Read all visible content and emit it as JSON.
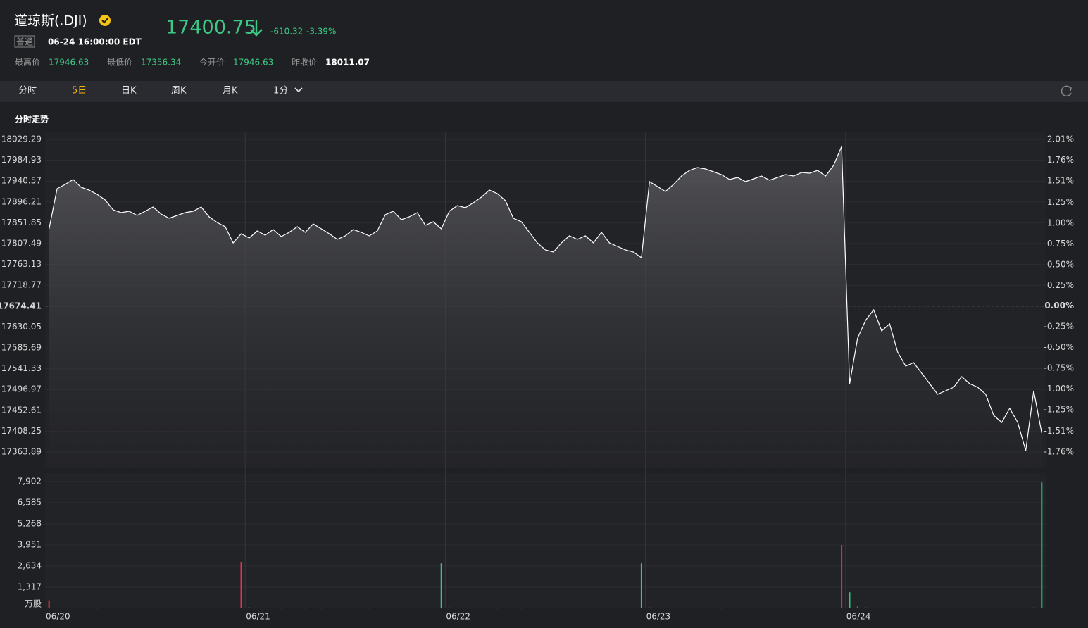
{
  "header": {
    "title": "道琼斯(.DJI)",
    "price": "17400.75",
    "change": "-610.32",
    "change_pct": "-3.39%",
    "tag": "普通",
    "time": "06-24 16:00:00 EDT",
    "stats": [
      {
        "label": "最高价",
        "value": "17946.63"
      },
      {
        "label": "最低价",
        "value": "17356.34"
      },
      {
        "label": "今开价",
        "value": "17946.63"
      },
      {
        "label": "昨收价",
        "value": "18011.07"
      }
    ]
  },
  "tabs": [
    "分时",
    "5日",
    "日K",
    "周K",
    "月K",
    "1分"
  ],
  "active_tab": 1,
  "section_title": "分时走势",
  "chart_data": [
    {
      "type": "line",
      "color": "#ffffff",
      "up_color": "#e8324f",
      "down_color": "#35c77f",
      "baseline": 17674.41,
      "grid": true,
      "categories": [
        "06/20",
        null,
        null,
        null,
        null,
        null,
        null,
        null,
        null,
        null,
        null,
        null,
        null,
        null,
        null,
        null,
        null,
        null,
        null,
        null,
        null,
        null,
        null,
        null,
        null,
        "06/21",
        null,
        null,
        null,
        null,
        null,
        null,
        null,
        null,
        null,
        null,
        null,
        null,
        null,
        null,
        null,
        null,
        null,
        null,
        null,
        null,
        null,
        null,
        null,
        null,
        "06/22",
        null,
        null,
        null,
        null,
        null,
        null,
        null,
        null,
        null,
        null,
        null,
        null,
        null,
        null,
        null,
        null,
        null,
        null,
        null,
        null,
        null,
        null,
        null,
        null,
        "06/23",
        null,
        null,
        null,
        null,
        null,
        null,
        null,
        null,
        null,
        null,
        null,
        null,
        null,
        null,
        null,
        null,
        null,
        null,
        null,
        null,
        null,
        null,
        null,
        null,
        "06/24",
        null,
        null,
        null,
        null,
        null,
        null,
        null,
        null,
        null,
        null,
        null,
        null,
        null,
        null,
        null,
        null,
        null,
        null,
        null,
        null,
        null,
        null,
        null,
        null
      ],
      "values": [
        17839.0,
        17924.4,
        17933.4,
        17943.9,
        17927.4,
        17921.4,
        17912.4,
        17900.4,
        17879.4,
        17873.4,
        17876.4,
        17867.5,
        17876.4,
        17885.4,
        17870.4,
        17861.5,
        17867.5,
        17873.4,
        17876.4,
        17885.4,
        17864.5,
        17852.5,
        17843.5,
        17809.0,
        17828.5,
        17819.5,
        17834.5,
        17825.5,
        17837.5,
        17822.5,
        17831.5,
        17843.5,
        17831.5,
        17849.5,
        17839.0,
        17828.5,
        17816.5,
        17824.0,
        17837.5,
        17831.5,
        17824.0,
        17834.5,
        17868.9,
        17876.4,
        17858.5,
        17864.5,
        17873.4,
        17846.5,
        17854.0,
        17839.0,
        17876.4,
        17888.4,
        17883.9,
        17894.4,
        17906.4,
        17921.4,
        17913.9,
        17898.9,
        17861.5,
        17854.0,
        17831.5,
        17809.0,
        17794.0,
        17789.5,
        17809.0,
        17824.0,
        17816.5,
        17824.0,
        17809.0,
        17831.5,
        17809.0,
        17801.5,
        17794.0,
        17789.5,
        17777.5,
        17939.4,
        17928.9,
        17918.4,
        17933.4,
        17951.4,
        17963.4,
        17969.4,
        17966.4,
        17960.4,
        17954.4,
        17943.9,
        17948.4,
        17939.4,
        17945.4,
        17951.4,
        17942.4,
        17948.4,
        17954.4,
        17951.4,
        17958.9,
        17957.4,
        17963.4,
        17951.4,
        17973.9,
        18014.3,
        17509.3,
        17606.7,
        17644.2,
        17666.6,
        17621.7,
        17636.7,
        17576.7,
        17546.8,
        17554.2,
        17531.8,
        17509.3,
        17486.8,
        17494.3,
        17501.8,
        17524.3,
        17509.3,
        17501.8,
        17486.8,
        17441.8,
        17426.9,
        17456.8,
        17426.9,
        17366.9,
        17494.3,
        17404.4
      ],
      "ylim": [
        17363.89,
        18029.29
      ],
      "yticks": [
        18029.29,
        17984.93,
        17940.57,
        17896.21,
        17851.85,
        17807.49,
        17763.13,
        17718.77,
        17674.41,
        17630.05,
        17585.69,
        17541.33,
        17496.97,
        17452.61,
        17408.25,
        17363.89
      ],
      "y2lim": [
        -1.76,
        2.01
      ],
      "y2ticks": [
        {
          "value": 2.01,
          "label": "2.01%"
        },
        {
          "value": 1.76,
          "label": "1.76%"
        },
        {
          "value": 1.51,
          "label": "1.51%"
        },
        {
          "value": 1.25,
          "label": "1.25%"
        },
        {
          "value": 1.0,
          "label": "1.00%"
        },
        {
          "value": 0.75,
          "label": "0.75%"
        },
        {
          "value": 0.5,
          "label": "0.50%"
        },
        {
          "value": 0.25,
          "label": "0.25%"
        },
        {
          "value": 0,
          "label": "0.00%"
        },
        {
          "value": -0.25,
          "label": "-0.25%"
        },
        {
          "value": -0.5,
          "label": "-0.50%"
        },
        {
          "value": -0.75,
          "label": "-0.75%"
        },
        {
          "value": -1.0,
          "label": "-1.00%"
        },
        {
          "value": -1.25,
          "label": "-1.25%"
        },
        {
          "value": -1.51,
          "label": "-1.51%"
        },
        {
          "value": -1.76,
          "label": "-1.76%"
        }
      ]
    },
    {
      "type": "bar",
      "unit": "万股",
      "values": [
        500,
        40,
        30,
        25,
        20,
        22,
        18,
        20,
        25,
        20,
        18,
        22,
        20,
        18,
        20,
        22,
        25,
        20,
        18,
        20,
        25,
        22,
        28,
        35,
        2900,
        60,
        30,
        25,
        20,
        18,
        20,
        22,
        18,
        20,
        18,
        20,
        22,
        18,
        20,
        22,
        18,
        20,
        25,
        22,
        20,
        25,
        22,
        30,
        40,
        2800,
        55,
        30,
        22,
        20,
        18,
        20,
        18,
        22,
        20,
        18,
        20,
        18,
        20,
        22,
        20,
        18,
        22,
        20,
        18,
        20,
        22,
        25,
        28,
        35,
        2800,
        60,
        30,
        22,
        20,
        18,
        20,
        22,
        18,
        20,
        18,
        20,
        22,
        20,
        18,
        20,
        22,
        20,
        18,
        22,
        20,
        25,
        22,
        28,
        45,
        3950,
        1000,
        120,
        60,
        45,
        40,
        35,
        30,
        32,
        30,
        28,
        30,
        32,
        30,
        28,
        30,
        32,
        35,
        30,
        32,
        35,
        38,
        40,
        45,
        60,
        7850
      ],
      "ylim": [
        0,
        7902
      ],
      "yticks": [
        {
          "value": 7902,
          "label": "7,902"
        },
        {
          "value": 6585,
          "label": "6,585"
        },
        {
          "value": 5268,
          "label": "5,268"
        },
        {
          "value": 3951,
          "label": "3,951"
        },
        {
          "value": 2634,
          "label": "2,634"
        },
        {
          "value": 1317,
          "label": "1,317"
        }
      ]
    }
  ]
}
